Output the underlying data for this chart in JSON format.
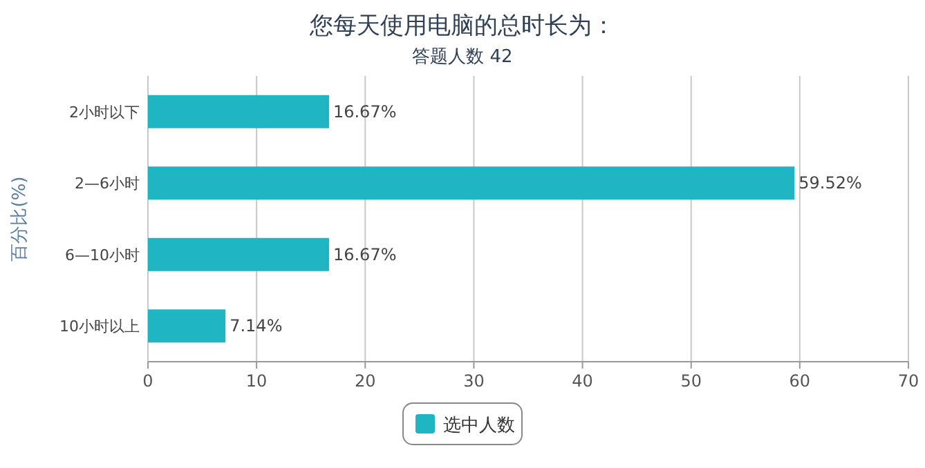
{
  "chart_data": {
    "type": "bar",
    "orientation": "horizontal",
    "title": "您每天使用电脑的总时长为：",
    "subtitle": "答题人数 42",
    "ylabel": "百分比(%)",
    "categories": [
      "2小时以下",
      "2—6小时",
      "6—10小时",
      "10小时以上"
    ],
    "series": [
      {
        "name": "选中人数",
        "color": "#20b5c2",
        "values": [
          16.67,
          59.52,
          16.67,
          7.14
        ],
        "value_labels": [
          "16.67%",
          "59.52%",
          "16.67%",
          "7.14%"
        ]
      }
    ],
    "xlim": [
      0,
      70
    ],
    "xticks": [
      0,
      10,
      20,
      30,
      40,
      50,
      60,
      70
    ],
    "grid": "x",
    "legend": "bottom"
  }
}
